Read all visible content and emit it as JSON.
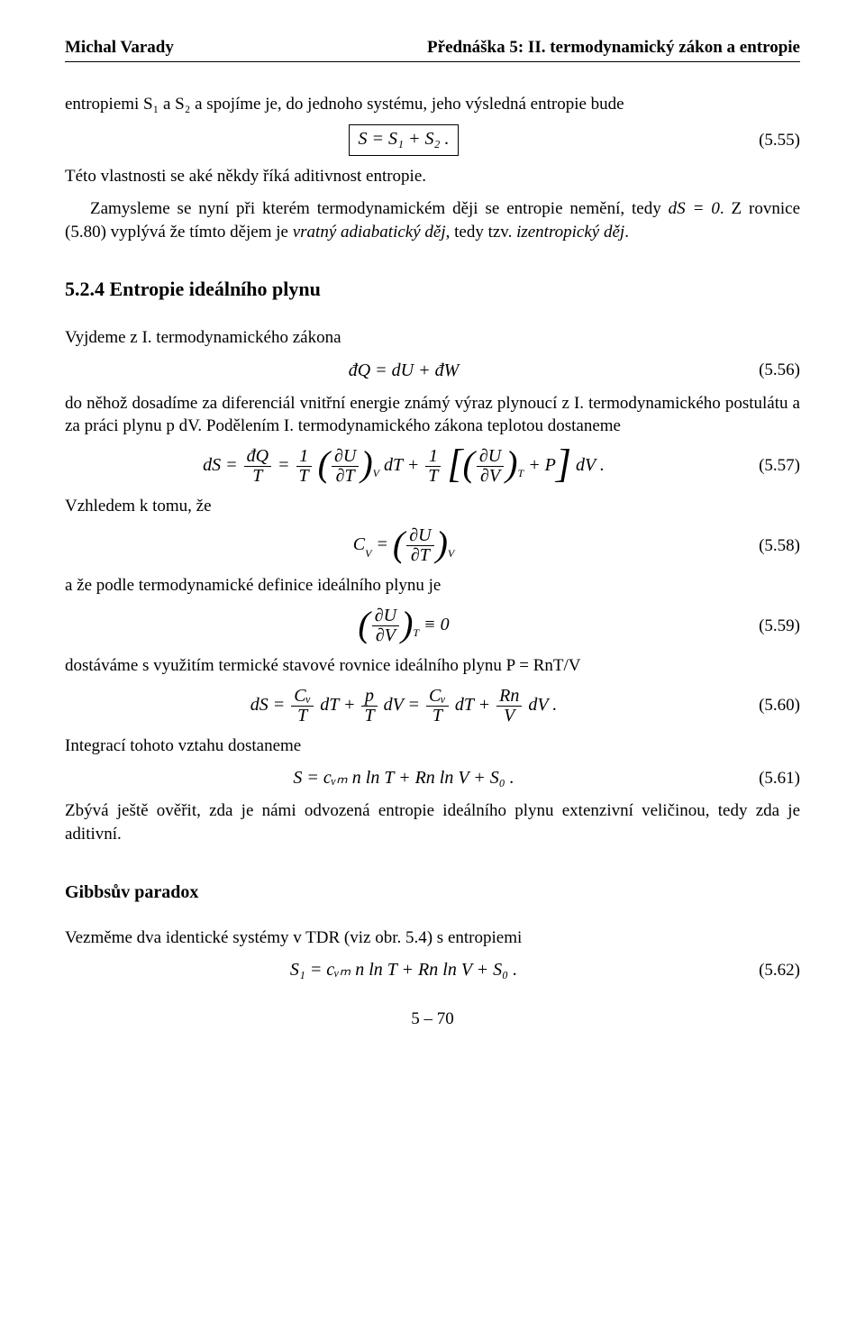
{
  "colors": {
    "text": "#000000",
    "background": "#ffffff",
    "rule": "#000000"
  },
  "typography": {
    "body_pt": 11,
    "header_pt": 11,
    "section_pt": 13,
    "family": "Times New Roman"
  },
  "header": {
    "left": "Michal Varady",
    "right": "Přednáška 5: II. termodynamický zákon a entropie"
  },
  "p1": "entropiemi S₁ a S₂ a spojíme je, do jednoho systému, jeho výsledná entropie bude",
  "eq55": {
    "body": "S = S₁ + S₂ .",
    "num": "(5.55)"
  },
  "p2": "Této vlastnosti se aké někdy říká aditivnost entropie.",
  "p3_a": "Zamysleme se nyní při kterém termodynamickém ději se entropie nemění, tedy ",
  "p3_b": "dS = 0",
  "p3_c": ". Z rovnice (5.80) vyplývá že tímto dějem je ",
  "p3_it1": "vratný adiabatický děj",
  "p3_d": ", tedy tzv. ",
  "p3_it2": "izentropický děj",
  "p3_e": ".",
  "section": "5.2.4   Entropie ideálního plynu",
  "p4": "Vyjdeme z I. termodynamického zákona",
  "eq56": {
    "body": "đQ = dU + đW",
    "num": "(5.56)"
  },
  "p5": "do něhož dosadíme za diferenciál vnitřní energie známý výraz plynoucí z I. termodynamického postulátu a za práci plynu p dV. Podělením I. termodynamického zákona teplotou dostaneme",
  "eq57": {
    "lhs": "dS =",
    "f1_num": "đQ",
    "f1_den": "T",
    "f2_num": "1",
    "f2_den": "T",
    "pd1_num": "∂U",
    "pd1_den": "∂T",
    "pd1_sub": "V",
    "mid": "dT +",
    "f3_num": "1",
    "f3_den": "T",
    "pd2_num": "∂U",
    "pd2_den": "∂V",
    "pd2_sub": "T",
    "tail": "+ P",
    "dv": "dV .",
    "num": "(5.57)"
  },
  "p6": "Vzhledem k tomu, že",
  "eq58": {
    "lhs": "C",
    "lhs_sub": "V",
    "eq": " = ",
    "pd_num": "∂U",
    "pd_den": "∂T",
    "pd_sub": "V",
    "num": "(5.58)"
  },
  "p7": "a že podle termodynamické definice ideálního plynu je",
  "eq59": {
    "pd_num": "∂U",
    "pd_den": "∂V",
    "pd_sub": "T",
    "rhs": " ≡ 0",
    "num": "(5.59)"
  },
  "p8": "dostáváme s využitím termické stavové rovnice ideálního plynu P = RnT/V",
  "eq60": {
    "lhs": "dS =",
    "t1_num": "Cᵥ",
    "t1_den": "T",
    "t1_tail": "dT +",
    "t2_num": "p",
    "t2_den": "T",
    "t2_tail": "dV =",
    "t3_num": "Cᵥ",
    "t3_den": "T",
    "t3_tail": "dT +",
    "t4_num": "Rn",
    "t4_den": "V",
    "t4_tail": "dV .",
    "num": "(5.60)"
  },
  "p9": "Integrací tohoto vztahu dostaneme",
  "eq61": {
    "body": "S = cᵥₘ n ln T + Rn ln V + S₀ .",
    "num": "(5.61)"
  },
  "p10": "Zbývá ještě ověřit, zda je námi odvozená entropie ideálního plynu extenzivní veličinou, tedy zda je aditivní.",
  "gibbs": "Gibbsův paradox",
  "p11": "Vezměme dva identické systémy v TDR (viz obr. 5.4) s entropiemi",
  "eq62": {
    "body": "S₁ = cᵥₘ n ln T + Rn ln V + S₀ .",
    "num": "(5.62)"
  },
  "footer": "5 – 70"
}
